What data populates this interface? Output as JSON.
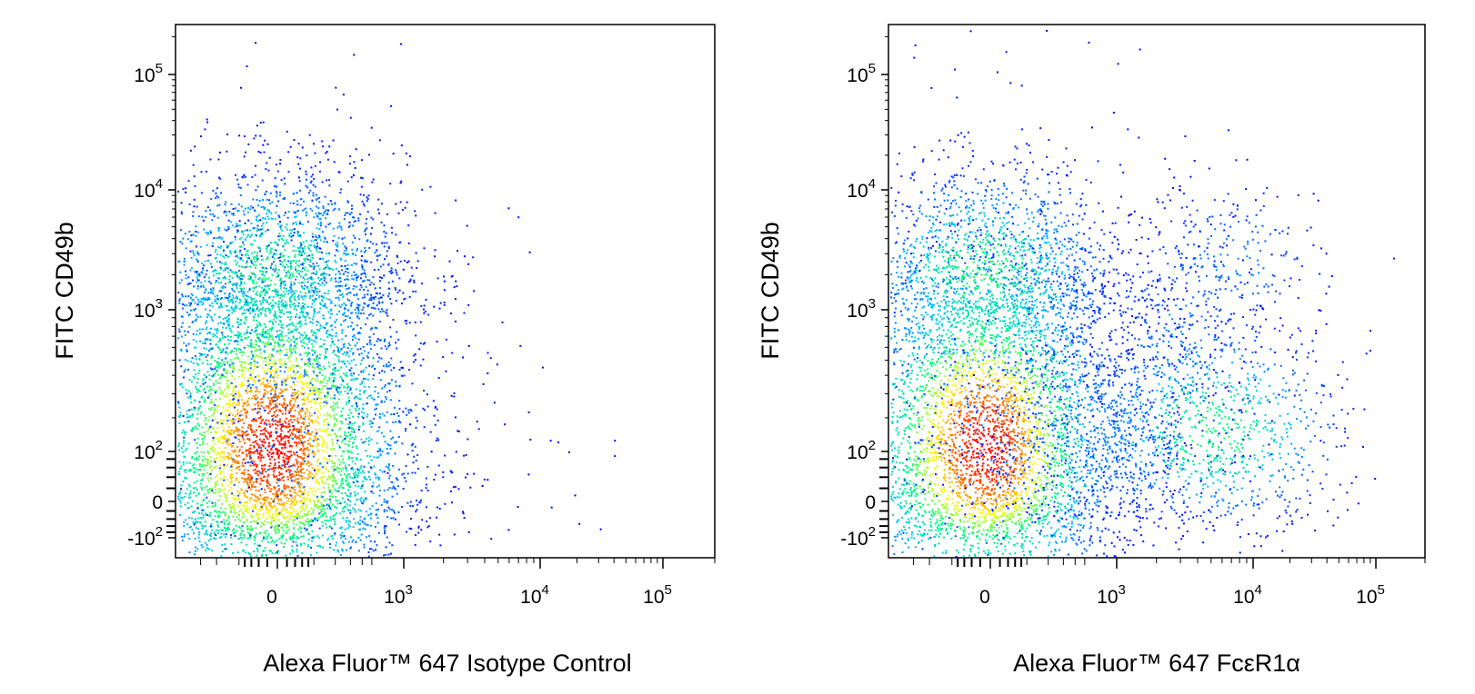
{
  "chart_data": [
    {
      "type": "scatter",
      "subtype": "flow-cytometry-density-dot-plot",
      "title": "",
      "xlabel": "Alexa Fluor™ 647 Isotype Control",
      "ylabel": "FITC CD49b",
      "x_scale": "biexponential",
      "y_scale": "biexponential",
      "xlim": [
        -400,
        200000
      ],
      "ylim": [
        -150,
        250000
      ],
      "x_ticks": [
        {
          "value": 0,
          "label": "0"
        },
        {
          "value": 1000,
          "label": "10",
          "sup": "3"
        },
        {
          "value": 10000,
          "label": "10",
          "sup": "4"
        },
        {
          "value": 100000,
          "label": "10",
          "sup": "5"
        }
      ],
      "y_ticks": [
        {
          "value": -100,
          "label": "-10",
          "sup": "2"
        },
        {
          "value": 0,
          "label": "0"
        },
        {
          "value": 100,
          "label": "10",
          "sup": "2"
        },
        {
          "value": 1000,
          "label": "10",
          "sup": "3"
        },
        {
          "value": 10000,
          "label": "10",
          "sup": "4"
        },
        {
          "value": 100000,
          "label": "10",
          "sup": "5"
        }
      ],
      "grid": false,
      "color_scale": [
        "#0000ff",
        "#00c8ff",
        "#00ff80",
        "#ffff00",
        "#ff0000"
      ],
      "populations": [
        {
          "x_center": -10,
          "y_center": 110,
          "n": 5200,
          "x_spread": 0.55,
          "y_spread": 0.55,
          "density": "high"
        },
        {
          "x_center": -10,
          "y_center": 2000,
          "n": 1700,
          "x_spread": 0.55,
          "y_spread": 0.45,
          "density": "medium"
        },
        {
          "x_center": 50,
          "y_center": 500,
          "n": 700,
          "x_spread": 0.7,
          "y_spread": 1.0,
          "density": "low"
        }
      ],
      "outliers": [
        [
          3000,
          2500
        ],
        [
          1100,
          180
        ],
        [
          5500,
          180
        ],
        [
          12000,
          130
        ],
        [
          17000,
          100
        ],
        [
          40000,
          130
        ],
        [
          40000,
          90
        ],
        [
          19000,
          10
        ],
        [
          700,
          50
        ],
        [
          900,
          1500
        ],
        [
          600,
          1300
        ]
      ]
    },
    {
      "type": "scatter",
      "subtype": "flow-cytometry-density-dot-plot",
      "title": "",
      "xlabel": "Alexa Fluor™ 647  FcεR1α",
      "ylabel": "FITC CD49b",
      "x_scale": "biexponential",
      "y_scale": "biexponential",
      "xlim": [
        -400,
        200000
      ],
      "ylim": [
        -150,
        250000
      ],
      "x_ticks": [
        {
          "value": 0,
          "label": "0"
        },
        {
          "value": 1000,
          "label": "10",
          "sup": "3"
        },
        {
          "value": 10000,
          "label": "10",
          "sup": "4"
        },
        {
          "value": 100000,
          "label": "10",
          "sup": "5"
        }
      ],
      "y_ticks": [
        {
          "value": -100,
          "label": "-10",
          "sup": "2"
        },
        {
          "value": 0,
          "label": "0"
        },
        {
          "value": 100,
          "label": "10",
          "sup": "2"
        },
        {
          "value": 1000,
          "label": "10",
          "sup": "3"
        },
        {
          "value": 10000,
          "label": "10",
          "sup": "4"
        },
        {
          "value": 100000,
          "label": "10",
          "sup": "5"
        }
      ],
      "grid": false,
      "color_scale": [
        "#0000ff",
        "#00c8ff",
        "#00ff80",
        "#ffff00",
        "#ff0000"
      ],
      "populations": [
        {
          "x_center": -10,
          "y_center": 110,
          "n": 4300,
          "x_spread": 0.55,
          "y_spread": 0.55,
          "density": "high"
        },
        {
          "x_center": -10,
          "y_center": 2000,
          "n": 1500,
          "x_spread": 0.55,
          "y_spread": 0.45,
          "density": "medium"
        },
        {
          "x_center": 600,
          "y_center": 160,
          "n": 650,
          "x_spread": 0.5,
          "y_spread": 0.3,
          "density": "low"
        },
        {
          "x_center": 5000,
          "y_center": 160,
          "n": 950,
          "x_spread": 0.5,
          "y_spread": 0.3,
          "density": "medium"
        },
        {
          "x_center": 2800,
          "y_center": 650,
          "n": 320,
          "x_spread": 0.3,
          "y_spread": 0.5,
          "density": "low"
        },
        {
          "x_center": 7000,
          "y_center": 2600,
          "n": 220,
          "x_spread": 0.35,
          "y_spread": 0.35,
          "density": "low"
        },
        {
          "x_center": 50,
          "y_center": 500,
          "n": 500,
          "x_spread": 0.7,
          "y_spread": 1.0,
          "density": "low"
        }
      ],
      "outliers": [
        [
          35000,
          1000
        ],
        [
          35000,
          130
        ],
        [
          20000,
          1900
        ],
        [
          14000,
          3000
        ],
        [
          4000,
          3500
        ],
        [
          16000,
          300
        ],
        [
          1000,
          4000
        ],
        [
          800,
          30
        ]
      ]
    }
  ]
}
